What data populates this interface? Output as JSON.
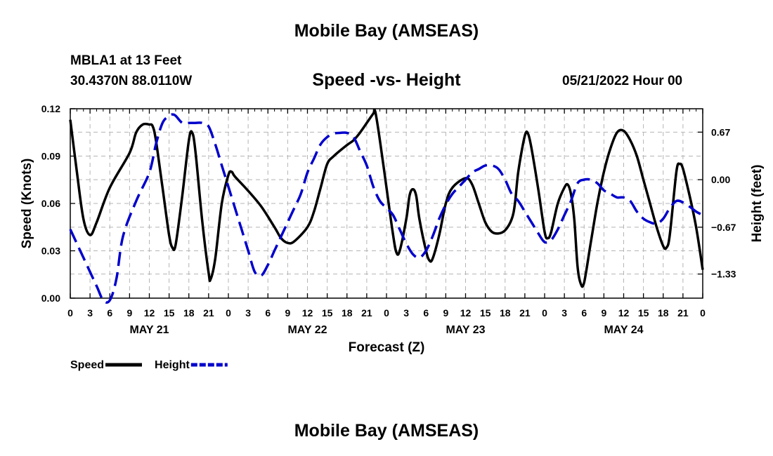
{
  "header": {
    "title": "Mobile Bay (AMSEAS)",
    "station": "MBLA1 at 13 Feet",
    "coords": "30.4370N  88.0110W",
    "subtitle": "Speed -vs- Height",
    "datetime": "05/21/2022 Hour 00"
  },
  "footer": {
    "title": "Mobile Bay (AMSEAS)"
  },
  "chart_data": {
    "type": "line",
    "title": "Speed -vs- Height",
    "xlabel": "Forecast (Z)",
    "ylabel": "Speed (Knots)",
    "y2label": "Height (feet)",
    "xlim": [
      0,
      96
    ],
    "ylim": [
      0,
      0.12
    ],
    "y2lim": [
      -1.67,
      1.0
    ],
    "grid": true,
    "legend_position": "bottom-left",
    "x_tick_values": [
      0,
      3,
      6,
      9,
      12,
      15,
      18,
      21,
      24,
      27,
      30,
      33,
      36,
      39,
      42,
      45,
      48,
      51,
      54,
      57,
      60,
      63,
      66,
      69,
      72,
      75,
      78,
      81,
      84,
      87,
      90,
      93,
      96
    ],
    "x_tick_labels": [
      "0",
      "3",
      "6",
      "9",
      "12",
      "15",
      "18",
      "21",
      "0",
      "3",
      "6",
      "9",
      "12",
      "15",
      "18",
      "21",
      "0",
      "3",
      "6",
      "9",
      "12",
      "15",
      "18",
      "21",
      "0",
      "3",
      "6",
      "9",
      "12",
      "15",
      "18",
      "21",
      "0"
    ],
    "date_labels": [
      {
        "x": 12,
        "label": "MAY 21"
      },
      {
        "x": 36,
        "label": "MAY 22"
      },
      {
        "x": 60,
        "label": "MAY 23"
      },
      {
        "x": 84,
        "label": "MAY 24"
      }
    ],
    "y_tick_values": [
      0,
      0.03,
      0.06,
      0.09,
      0.12
    ],
    "y_tick_labels": [
      "0.00",
      "0.03",
      "0.06",
      "0.09",
      "0.12"
    ],
    "y2_tick_values": [
      0.67,
      0.0,
      -0.67,
      -1.33
    ],
    "y2_tick_labels": [
      "0.67",
      "0.00",
      "−0.67",
      "−1.33"
    ],
    "series": [
      {
        "name": "Speed",
        "axis": "left",
        "color": "#000000",
        "dash": "solid",
        "points": [
          [
            0,
            0.113
          ],
          [
            1,
            0.08
          ],
          [
            2,
            0.05
          ],
          [
            3,
            0.04
          ],
          [
            4,
            0.048
          ],
          [
            6,
            0.07
          ],
          [
            9,
            0.092
          ],
          [
            10,
            0.105
          ],
          [
            11,
            0.11
          ],
          [
            12,
            0.11
          ],
          [
            12.5,
            0.109
          ],
          [
            13,
            0.1
          ],
          [
            14,
            0.07
          ],
          [
            15,
            0.04
          ],
          [
            15.5,
            0.032
          ],
          [
            16,
            0.034
          ],
          [
            17,
            0.065
          ],
          [
            18,
            0.1
          ],
          [
            18.5,
            0.105
          ],
          [
            19,
            0.093
          ],
          [
            20,
            0.05
          ],
          [
            21,
            0.016
          ],
          [
            21.3,
            0.012
          ],
          [
            22,
            0.025
          ],
          [
            23,
            0.06
          ],
          [
            24,
            0.078
          ],
          [
            24.5,
            0.08
          ],
          [
            25,
            0.077
          ],
          [
            27,
            0.068
          ],
          [
            29,
            0.058
          ],
          [
            31,
            0.045
          ],
          [
            32,
            0.038
          ],
          [
            33,
            0.035
          ],
          [
            34,
            0.036
          ],
          [
            36,
            0.045
          ],
          [
            37,
            0.055
          ],
          [
            38,
            0.07
          ],
          [
            39,
            0.085
          ],
          [
            40,
            0.09
          ],
          [
            42,
            0.097
          ],
          [
            43,
            0.1
          ],
          [
            44,
            0.105
          ],
          [
            45,
            0.111
          ],
          [
            46,
            0.117
          ],
          [
            46.3,
            0.118
          ],
          [
            47,
            0.1
          ],
          [
            48,
            0.07
          ],
          [
            49,
            0.04
          ],
          [
            49.5,
            0.029
          ],
          [
            50,
            0.03
          ],
          [
            51,
            0.05
          ],
          [
            51.5,
            0.065
          ],
          [
            52,
            0.069
          ],
          [
            52.5,
            0.065
          ],
          [
            53,
            0.05
          ],
          [
            54,
            0.03
          ],
          [
            54.5,
            0.024
          ],
          [
            55,
            0.025
          ],
          [
            56,
            0.04
          ],
          [
            57,
            0.06
          ],
          [
            58,
            0.07
          ],
          [
            60,
            0.076
          ],
          [
            61,
            0.072
          ],
          [
            62,
            0.06
          ],
          [
            63,
            0.048
          ],
          [
            64,
            0.042
          ],
          [
            65,
            0.041
          ],
          [
            66,
            0.043
          ],
          [
            67,
            0.05
          ],
          [
            67.5,
            0.06
          ],
          [
            68,
            0.08
          ],
          [
            69,
            0.103
          ],
          [
            69.5,
            0.104
          ],
          [
            70,
            0.095
          ],
          [
            71,
            0.07
          ],
          [
            72,
            0.042
          ],
          [
            72.5,
            0.038
          ],
          [
            73,
            0.042
          ],
          [
            74,
            0.06
          ],
          [
            75,
            0.07
          ],
          [
            75.5,
            0.072
          ],
          [
            76,
            0.066
          ],
          [
            76.5,
            0.05
          ],
          [
            77,
            0.02
          ],
          [
            77.5,
            0.009
          ],
          [
            78,
            0.01
          ],
          [
            79,
            0.035
          ],
          [
            80,
            0.06
          ],
          [
            81,
            0.08
          ],
          [
            82,
            0.095
          ],
          [
            83,
            0.105
          ],
          [
            84,
            0.106
          ],
          [
            85,
            0.1
          ],
          [
            86,
            0.09
          ],
          [
            87,
            0.075
          ],
          [
            88,
            0.06
          ],
          [
            89,
            0.045
          ],
          [
            90,
            0.033
          ],
          [
            90.5,
            0.032
          ],
          [
            91,
            0.04
          ],
          [
            92,
            0.08
          ],
          [
            92.5,
            0.085
          ],
          [
            93,
            0.082
          ],
          [
            94,
            0.065
          ],
          [
            95,
            0.045
          ],
          [
            96,
            0.018
          ]
        ]
      },
      {
        "name": "Height",
        "axis": "right",
        "color": "#0000cc",
        "dash": "dashed",
        "points": [
          [
            0,
            -0.7
          ],
          [
            2,
            -1.1
          ],
          [
            4,
            -1.5
          ],
          [
            5,
            -1.7
          ],
          [
            6,
            -1.7
          ],
          [
            7,
            -1.4
          ],
          [
            8,
            -0.8
          ],
          [
            10,
            -0.3
          ],
          [
            12,
            0.1
          ],
          [
            13,
            0.5
          ],
          [
            14,
            0.8
          ],
          [
            15,
            0.9
          ],
          [
            15.5,
            0.92
          ],
          [
            16,
            0.9
          ],
          [
            17,
            0.8
          ],
          [
            18,
            0.8
          ],
          [
            19,
            0.8
          ],
          [
            20,
            0.8
          ],
          [
            21,
            0.75
          ],
          [
            22,
            0.5
          ],
          [
            23,
            0.2
          ],
          [
            24,
            -0.1
          ],
          [
            25,
            -0.4
          ],
          [
            26,
            -0.7
          ],
          [
            27,
            -1.0
          ],
          [
            28,
            -1.3
          ],
          [
            29,
            -1.35
          ],
          [
            30,
            -1.2
          ],
          [
            31,
            -1.0
          ],
          [
            32,
            -0.8
          ],
          [
            33,
            -0.6
          ],
          [
            34,
            -0.4
          ],
          [
            35,
            -0.2
          ],
          [
            36,
            0.1
          ],
          [
            37,
            0.3
          ],
          [
            38,
            0.5
          ],
          [
            39,
            0.6
          ],
          [
            40,
            0.65
          ],
          [
            41,
            0.66
          ],
          [
            42,
            0.66
          ],
          [
            43,
            0.6
          ],
          [
            44,
            0.4
          ],
          [
            45,
            0.2
          ],
          [
            46,
            -0.1
          ],
          [
            47,
            -0.3
          ],
          [
            48,
            -0.4
          ],
          [
            49,
            -0.5
          ],
          [
            50,
            -0.7
          ],
          [
            51,
            -0.9
          ],
          [
            52,
            -1.05
          ],
          [
            53,
            -1.1
          ],
          [
            54,
            -1.0
          ],
          [
            55,
            -0.8
          ],
          [
            56,
            -0.55
          ],
          [
            57,
            -0.35
          ],
          [
            58,
            -0.2
          ],
          [
            59,
            -0.1
          ],
          [
            60,
            0.0
          ],
          [
            61,
            0.1
          ],
          [
            62,
            0.15
          ],
          [
            63,
            0.2
          ],
          [
            64,
            0.2
          ],
          [
            65,
            0.15
          ],
          [
            66,
            0.0
          ],
          [
            67,
            -0.2
          ],
          [
            68,
            -0.3
          ],
          [
            69,
            -0.45
          ],
          [
            70,
            -0.6
          ],
          [
            71,
            -0.75
          ],
          [
            72,
            -0.88
          ],
          [
            73,
            -0.85
          ],
          [
            74,
            -0.7
          ],
          [
            75,
            -0.5
          ],
          [
            76,
            -0.3
          ],
          [
            77,
            -0.05
          ],
          [
            78,
            0.0
          ],
          [
            79,
            0.0
          ],
          [
            80,
            -0.05
          ],
          [
            81,
            -0.15
          ],
          [
            82,
            -0.2
          ],
          [
            83,
            -0.25
          ],
          [
            84,
            -0.25
          ],
          [
            85,
            -0.3
          ],
          [
            86,
            -0.45
          ],
          [
            87,
            -0.55
          ],
          [
            88,
            -0.6
          ],
          [
            89,
            -0.62
          ],
          [
            90,
            -0.55
          ],
          [
            91,
            -0.4
          ],
          [
            92,
            -0.3
          ],
          [
            93,
            -0.32
          ],
          [
            94,
            -0.38
          ],
          [
            95,
            -0.45
          ],
          [
            96,
            -0.5
          ]
        ]
      }
    ]
  }
}
